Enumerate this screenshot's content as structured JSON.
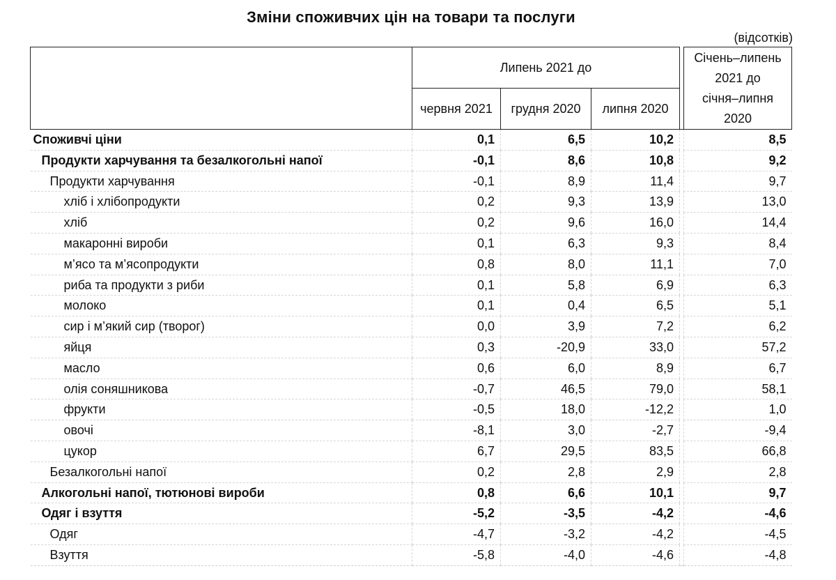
{
  "title": "Зміни споживчих цін на товари та послуги",
  "unit": "(відсотків)",
  "header": {
    "group": "Липень 2021 до",
    "col1": "червня 2021",
    "col2": "грудня 2020",
    "col3": "липня 2020",
    "col4_line1": "Січень–липень",
    "col4_line2": "2021 до",
    "col4_line3": "січня–липня",
    "col4_line4": "2020"
  },
  "rows": [
    {
      "label": "Споживчі ціни",
      "level": 0,
      "bold": true,
      "v": [
        "0,1",
        "6,5",
        "10,2",
        "8,5"
      ]
    },
    {
      "label": "Продукти харчування та безалкогольні напої",
      "level": 1,
      "bold": true,
      "v": [
        "-0,1",
        "8,6",
        "10,8",
        "9,2"
      ]
    },
    {
      "label": "Продукти харчування",
      "level": 2,
      "bold": false,
      "v": [
        "-0,1",
        "8,9",
        "11,4",
        "9,7"
      ]
    },
    {
      "label": "хліб і хлібопродукти",
      "level": 3,
      "bold": false,
      "v": [
        "0,2",
        "9,3",
        "13,9",
        "13,0"
      ]
    },
    {
      "label": "хліб",
      "level": 3,
      "bold": false,
      "v": [
        "0,2",
        "9,6",
        "16,0",
        "14,4"
      ]
    },
    {
      "label": "макаронні вироби",
      "level": 3,
      "bold": false,
      "v": [
        "0,1",
        "6,3",
        "9,3",
        "8,4"
      ]
    },
    {
      "label": "м’ясо та м’ясопродукти",
      "level": 3,
      "bold": false,
      "v": [
        "0,8",
        "8,0",
        "11,1",
        "7,0"
      ]
    },
    {
      "label": "риба та продукти з риби",
      "level": 3,
      "bold": false,
      "v": [
        "0,1",
        "5,8",
        "6,9",
        "6,3"
      ]
    },
    {
      "label": "молоко",
      "level": 3,
      "bold": false,
      "v": [
        "0,1",
        "0,4",
        "6,5",
        "5,1"
      ]
    },
    {
      "label": "сир і м’який сир (творог)",
      "level": 3,
      "bold": false,
      "v": [
        "0,0",
        "3,9",
        "7,2",
        "6,2"
      ]
    },
    {
      "label": "яйця",
      "level": 3,
      "bold": false,
      "v": [
        "0,3",
        "-20,9",
        "33,0",
        "57,2"
      ]
    },
    {
      "label": "масло",
      "level": 3,
      "bold": false,
      "v": [
        "0,6",
        "6,0",
        "8,9",
        "6,7"
      ]
    },
    {
      "label": "олія соняшникова",
      "level": 3,
      "bold": false,
      "v": [
        "-0,7",
        "46,5",
        "79,0",
        "58,1"
      ]
    },
    {
      "label": "фрукти",
      "level": 3,
      "bold": false,
      "v": [
        "-0,5",
        "18,0",
        "-12,2",
        "1,0"
      ]
    },
    {
      "label": "овочі",
      "level": 3,
      "bold": false,
      "v": [
        "-8,1",
        "3,0",
        "-2,7",
        "-9,4"
      ]
    },
    {
      "label": "цукор",
      "level": 3,
      "bold": false,
      "v": [
        "6,7",
        "29,5",
        "83,5",
        "66,8"
      ]
    },
    {
      "label": "Безалкогольні напої",
      "level": 2,
      "bold": false,
      "v": [
        "0,2",
        "2,8",
        "2,9",
        "2,8"
      ]
    },
    {
      "label": "Алкогольні напої, тютюнові вироби",
      "level": 1,
      "bold": true,
      "v": [
        "0,8",
        "6,6",
        "10,1",
        "9,7"
      ]
    },
    {
      "label": "Одяг і взуття",
      "level": 1,
      "bold": true,
      "v": [
        "-5,2",
        "-3,5",
        "-4,2",
        "-4,6"
      ]
    },
    {
      "label": "Одяг",
      "level": 2,
      "bold": false,
      "v": [
        "-4,7",
        "-3,2",
        "-4,2",
        "-4,5"
      ]
    },
    {
      "label": "Взуття",
      "level": 2,
      "bold": false,
      "v": [
        "-5,8",
        "-4,0",
        "-4,6",
        "-4,8"
      ]
    }
  ]
}
